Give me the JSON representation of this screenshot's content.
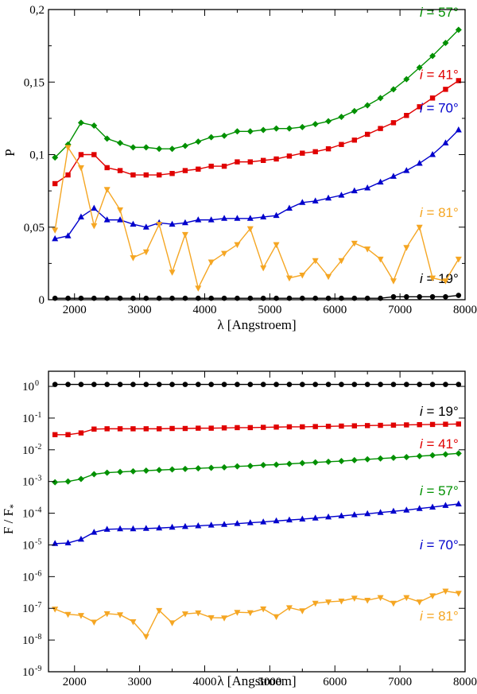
{
  "chart_data": [
    {
      "type": "line",
      "ylabel": "P",
      "xlabel": "λ [Angstroem]",
      "xlim": [
        1600,
        8000
      ],
      "ylim": [
        0,
        0.2
      ],
      "xticks": [
        2000,
        3000,
        4000,
        5000,
        6000,
        7000,
        8000
      ],
      "xtick_labels": [
        "2000",
        "3000",
        "4000",
        "5000",
        "6000",
        "7000",
        "8000"
      ],
      "yticks": [
        0,
        0.05,
        0.1,
        0.15,
        0.2
      ],
      "ytick_labels": [
        "0",
        "0,05",
        "0,1",
        "0,15",
        "0,2"
      ],
      "x": [
        1700,
        1900,
        2100,
        2300,
        2500,
        2700,
        2900,
        3100,
        3300,
        3500,
        3700,
        3900,
        4100,
        4300,
        4500,
        4700,
        4900,
        5100,
        5300,
        5500,
        5700,
        5900,
        6100,
        6300,
        6500,
        6700,
        6900,
        7100,
        7300,
        7500,
        7700,
        7900
      ],
      "series": [
        {
          "name": "i = 19°",
          "i_prefix": "i",
          "label_rest": " = 19°",
          "color": "#000000",
          "marker": "circle",
          "values": [
            0.001,
            0.001,
            0.001,
            0.001,
            0.001,
            0.001,
            0.001,
            0.001,
            0.001,
            0.001,
            0.001,
            0.001,
            0.001,
            0.001,
            0.001,
            0.001,
            0.001,
            0.001,
            0.001,
            0.001,
            0.001,
            0.001,
            0.001,
            0.001,
            0.001,
            0.001,
            0.002,
            0.002,
            0.002,
            0.002,
            0.002,
            0.003
          ]
        },
        {
          "name": "i = 41°",
          "i_prefix": "i",
          "label_rest": " = 41°",
          "color": "#e00000",
          "marker": "square",
          "values": [
            0.08,
            0.086,
            0.1,
            0.1,
            0.091,
            0.089,
            0.086,
            0.086,
            0.086,
            0.087,
            0.089,
            0.09,
            0.092,
            0.092,
            0.095,
            0.095,
            0.096,
            0.097,
            0.099,
            0.101,
            0.102,
            0.104,
            0.107,
            0.11,
            0.114,
            0.118,
            0.122,
            0.127,
            0.133,
            0.139,
            0.145,
            0.151
          ]
        },
        {
          "name": "i = 57°",
          "i_prefix": "i",
          "label_rest": " = 57°",
          "color": "#009000",
          "marker": "diamond",
          "values": [
            0.098,
            0.107,
            0.122,
            0.12,
            0.111,
            0.108,
            0.105,
            0.105,
            0.104,
            0.104,
            0.106,
            0.109,
            0.112,
            0.113,
            0.116,
            0.116,
            0.117,
            0.118,
            0.118,
            0.119,
            0.121,
            0.123,
            0.126,
            0.13,
            0.134,
            0.139,
            0.145,
            0.152,
            0.16,
            0.168,
            0.177,
            0.186
          ]
        },
        {
          "name": "i = 70°",
          "i_prefix": "i",
          "label_rest": " = 70°",
          "color": "#0000cc",
          "marker": "triangle-up",
          "values": [
            0.042,
            0.044,
            0.057,
            0.063,
            0.055,
            0.055,
            0.052,
            0.05,
            0.053,
            0.052,
            0.053,
            0.055,
            0.055,
            0.056,
            0.056,
            0.056,
            0.057,
            0.058,
            0.063,
            0.067,
            0.068,
            0.07,
            0.072,
            0.075,
            0.077,
            0.081,
            0.085,
            0.089,
            0.094,
            0.1,
            0.108,
            0.117
          ]
        },
        {
          "name": "i = 81°",
          "i_prefix": "i",
          "label_rest": " = 81°",
          "color": "#f5a623",
          "marker": "triangle-down",
          "values": [
            0.048,
            0.105,
            0.091,
            0.051,
            0.076,
            0.062,
            0.029,
            0.033,
            0.052,
            0.019,
            0.045,
            0.008,
            0.026,
            0.032,
            0.038,
            0.049,
            0.022,
            0.038,
            0.015,
            0.017,
            0.027,
            0.016,
            0.027,
            0.039,
            0.035,
            0.028,
            0.013,
            0.036,
            0.05,
            0.015,
            0.013,
            0.028
          ]
        }
      ]
    },
    {
      "type": "line",
      "ylabel_main": "F / F",
      "ylabel_sub": "*",
      "xlabel": "λ [Angstroem]",
      "yscale": "log",
      "xlim": [
        1600,
        8000
      ],
      "ylim": [
        1e-09,
        3
      ],
      "xticks": [
        2000,
        3000,
        4000,
        5000,
        6000,
        7000,
        8000
      ],
      "xtick_labels": [
        "2000",
        "3000",
        "4000",
        "5000",
        "6000",
        "7000",
        "8000"
      ],
      "ytick_exponents": [
        "0",
        "-1",
        "-2",
        "-3",
        "-4",
        "-5",
        "-6",
        "-7",
        "-8",
        "-9"
      ],
      "ytick_base": "10",
      "x": [
        1700,
        1900,
        2100,
        2300,
        2500,
        2700,
        2900,
        3100,
        3300,
        3500,
        3700,
        3900,
        4100,
        4300,
        4500,
        4700,
        4900,
        5100,
        5300,
        5500,
        5700,
        5900,
        6100,
        6300,
        6500,
        6700,
        6900,
        7100,
        7300,
        7500,
        7700,
        7900
      ],
      "series": [
        {
          "name": "i = 19°",
          "i_prefix": "i",
          "label_rest": " = 19°",
          "color": "#000000",
          "marker": "circle",
          "values": [
            1.15,
            1.15,
            1.15,
            1.15,
            1.15,
            1.15,
            1.15,
            1.15,
            1.15,
            1.15,
            1.15,
            1.15,
            1.15,
            1.15,
            1.15,
            1.15,
            1.15,
            1.15,
            1.15,
            1.15,
            1.15,
            1.15,
            1.15,
            1.15,
            1.15,
            1.15,
            1.15,
            1.15,
            1.15,
            1.15,
            1.15,
            1.15
          ]
        },
        {
          "name": "i = 41°",
          "i_prefix": "i",
          "label_rest": " = 41°",
          "color": "#e00000",
          "marker": "square",
          "values": [
            0.03,
            0.03,
            0.034,
            0.045,
            0.046,
            0.046,
            0.046,
            0.046,
            0.046,
            0.047,
            0.047,
            0.048,
            0.048,
            0.049,
            0.05,
            0.05,
            0.051,
            0.052,
            0.053,
            0.053,
            0.054,
            0.055,
            0.056,
            0.057,
            0.058,
            0.059,
            0.06,
            0.061,
            0.062,
            0.063,
            0.064,
            0.065
          ]
        },
        {
          "name": "i = 57°",
          "i_prefix": "i",
          "label_rest": " = 57°",
          "color": "#009000",
          "marker": "diamond",
          "values": [
            0.00095,
            0.001,
            0.0012,
            0.0017,
            0.0019,
            0.002,
            0.0021,
            0.0022,
            0.0023,
            0.0024,
            0.0025,
            0.0026,
            0.0027,
            0.0028,
            0.003,
            0.0031,
            0.0033,
            0.0034,
            0.0036,
            0.0038,
            0.004,
            0.0042,
            0.0044,
            0.0047,
            0.005,
            0.0053,
            0.0056,
            0.0059,
            0.0063,
            0.0067,
            0.0072,
            0.0077
          ]
        },
        {
          "name": "i = 70°",
          "i_prefix": "i",
          "label_rest": " = 70°",
          "color": "#0000cc",
          "marker": "triangle-up",
          "values": [
            1.1e-05,
            1.15e-05,
            1.5e-05,
            2.5e-05,
            3.1e-05,
            3.2e-05,
            3.2e-05,
            3.3e-05,
            3.4e-05,
            3.6e-05,
            3.8e-05,
            4e-05,
            4.2e-05,
            4.4e-05,
            4.7e-05,
            5e-05,
            5.3e-05,
            5.7e-05,
            6.1e-05,
            6.5e-05,
            7e-05,
            7.6e-05,
            8.2e-05,
            8.9e-05,
            9.6e-05,
            0.000105,
            0.000115,
            0.000125,
            0.00014,
            0.000155,
            0.000175,
            0.000195
          ]
        },
        {
          "name": "i = 81°",
          "i_prefix": "i",
          "label_rest": " = 81°",
          "color": "#f5a623",
          "marker": "triangle-down",
          "values": [
            9.5e-08,
            6.5e-08,
            6e-08,
            3.7e-08,
            6.8e-08,
            6.3e-08,
            3.8e-08,
            1.3e-08,
            8.6e-08,
            3.5e-08,
            6.7e-08,
            7.2e-08,
            5.1e-08,
            5e-08,
            7.5e-08,
            7.3e-08,
            9.6e-08,
            5.5e-08,
            1.05e-07,
            8.4e-08,
            1.45e-07,
            1.6e-07,
            1.7e-07,
            2.1e-07,
            1.8e-07,
            2.2e-07,
            1.45e-07,
            2.2e-07,
            1.6e-07,
            2.5e-07,
            3.5e-07,
            3e-07
          ]
        }
      ]
    }
  ]
}
